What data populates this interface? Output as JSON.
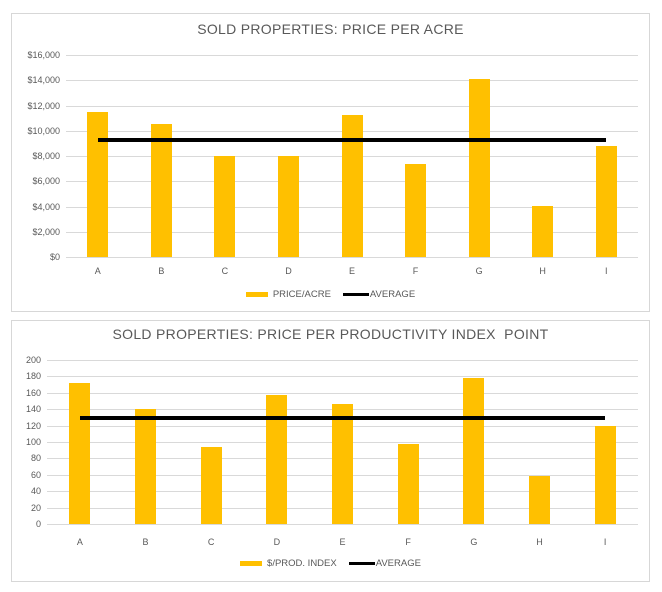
{
  "chart_data": [
    {
      "type": "bar",
      "title": "SOLD PROPERTIES: PRICE PER ACRE",
      "categories": [
        "A",
        "B",
        "C",
        "D",
        "E",
        "F",
        "G",
        "H",
        "I"
      ],
      "series": [
        {
          "name": "PRICE/ACRE",
          "type": "bar",
          "color": "#FFC000",
          "values": [
            11450,
            10550,
            8000,
            8000,
            11250,
            7400,
            14100,
            4050,
            8800
          ]
        },
        {
          "name": "AVERAGE",
          "type": "line",
          "color": "#000000",
          "value": 9300
        }
      ],
      "ylim": [
        0,
        16000
      ],
      "ytick_step": 2000,
      "ytick_labels": [
        "$0",
        "$2,000",
        "$4,000",
        "$6,000",
        "$8,000",
        "$10,000",
        "$12,000",
        "$14,000",
        "$16,000"
      ],
      "xlabel": "",
      "ylabel": "",
      "grid": true,
      "legend_position": "bottom"
    },
    {
      "type": "bar",
      "title": "SOLD PROPERTIES: PRICE PER PRODUCTIVITY INDEX  POINT",
      "categories": [
        "A",
        "B",
        "C",
        "D",
        "E",
        "F",
        "G",
        "H",
        "I"
      ],
      "series": [
        {
          "name": "$/PROD. INDEX",
          "type": "bar",
          "color": "#FFC000",
          "values": [
            172,
            140,
            94,
            157,
            146,
            98,
            178,
            59,
            119
          ]
        },
        {
          "name": "AVERAGE",
          "type": "line",
          "color": "#000000",
          "value": 129
        }
      ],
      "ylim": [
        0,
        200
      ],
      "ytick_step": 20,
      "ytick_labels": [
        "0",
        "20",
        "40",
        "60",
        "80",
        "100",
        "120",
        "140",
        "160",
        "180",
        "200"
      ],
      "xlabel": "",
      "ylabel": "",
      "grid": true,
      "legend_position": "bottom"
    }
  ],
  "colors": {
    "bar_fill": "#FFC000",
    "average_line": "#000000",
    "gridline": "#D9D9D9",
    "label_text": "#595959",
    "chart_border": "#D7D7D7",
    "background": "#FFFFFF"
  }
}
